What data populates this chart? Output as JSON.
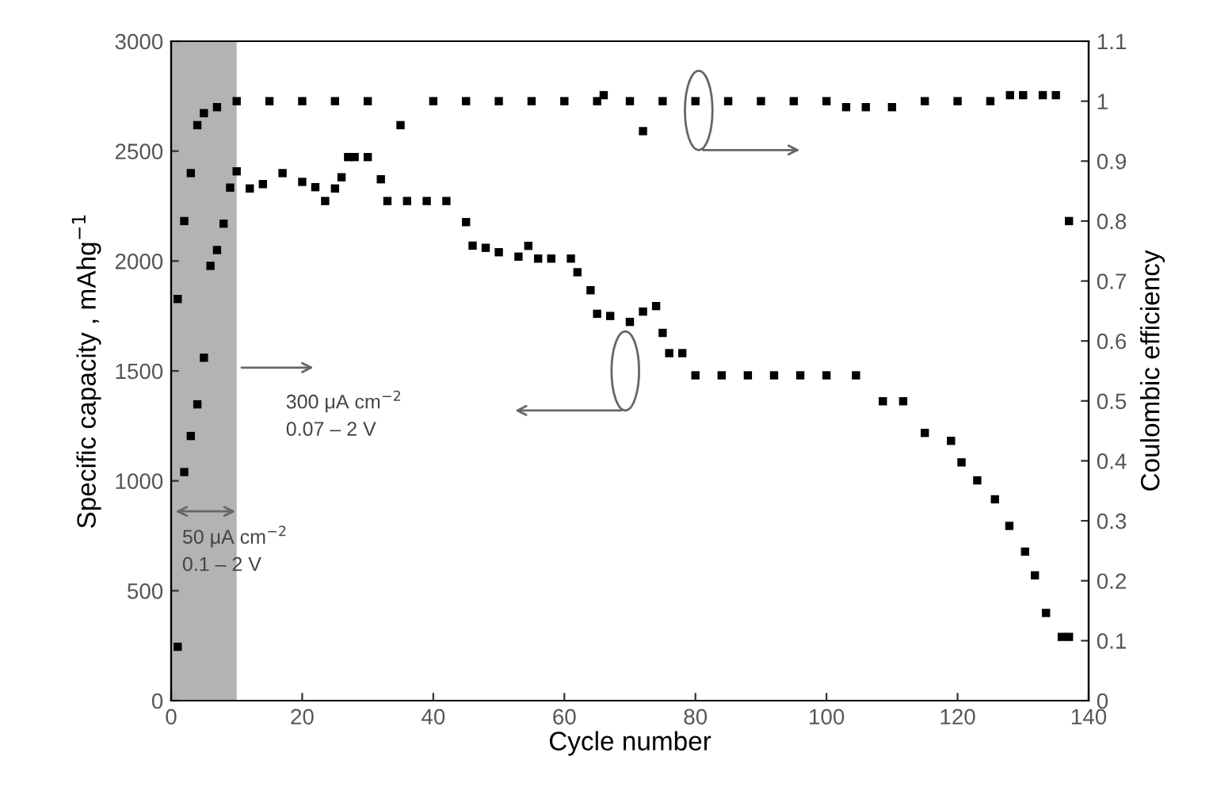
{
  "chart_data": {
    "type": "scatter",
    "xlabel": "Cycle number",
    "ylabel": "Specific capacity , mAhg$^{−1}$",
    "y2label": "Coulombic efficiency",
    "marker": "square",
    "grid": false,
    "legend": false,
    "xlim": [
      0,
      140
    ],
    "xticks": [
      0,
      20,
      40,
      60,
      80,
      100,
      120,
      140
    ],
    "ylim": [
      0,
      3000
    ],
    "yticks": [
      0,
      500,
      1000,
      1500,
      2000,
      2500,
      3000
    ],
    "y2lim": [
      0,
      1.1
    ],
    "y2ticks": [
      0,
      0.1,
      0.2,
      0.3,
      0.4,
      0.5,
      0.6,
      0.7,
      0.8,
      0.9,
      1,
      1.1
    ],
    "bands": [
      {
        "axis": "x",
        "from": 0,
        "to": 10,
        "color": "#b3b3b3"
      }
    ],
    "annotations": [
      "300 μA cm$^{−2}$\n0.07 – 2 V",
      "50 μA cm$^{−2}$\n0.1 – 2 V"
    ],
    "series": [
      {
        "color": "#000000",
        "axis": "y",
        "x": [
          1,
          2,
          3,
          4,
          5,
          6,
          7,
          8,
          9,
          10,
          12,
          14,
          17,
          20,
          22,
          23.5,
          25,
          26,
          27,
          28,
          30,
          32,
          33,
          36,
          39,
          42,
          45,
          46,
          48,
          50,
          53,
          54.5,
          56,
          58,
          61,
          62,
          64,
          65,
          67,
          70,
          72,
          74,
          75,
          76,
          78,
          80,
          84,
          88,
          92,
          96,
          100,
          104.5,
          108.6,
          111.7,
          115,
          119,
          120.6,
          123,
          125.7,
          127.9,
          130.3,
          131.8,
          133.5,
          135.9,
          137
        ],
        "values": [
          245,
          1040,
          1204,
          1348,
          1560,
          1978,
          2050,
          2170,
          2334,
          2408,
          2330,
          2350,
          2400,
          2360,
          2336,
          2273,
          2330,
          2381,
          2473,
          2473,
          2473,
          2372,
          2273,
          2273,
          2273,
          2273,
          2177,
          2070,
          2060,
          2040,
          2020,
          2069,
          2011,
          2011,
          2011,
          1949,
          1867,
          1760,
          1750,
          1723,
          1770,
          1795,
          1673,
          1581,
          1581,
          1480,
          1480,
          1480,
          1480,
          1480,
          1480,
          1480,
          1362,
          1362,
          1218,
          1182,
          1084,
          1002,
          916,
          795,
          678,
          570,
          399,
          290,
          290
        ]
      },
      {
        "color": "#000000",
        "axis": "y2",
        "x": [
          1,
          2,
          3,
          4,
          5,
          7,
          10,
          15,
          20,
          25,
          30,
          35,
          40,
          45,
          50,
          55,
          60,
          65,
          66,
          70,
          72,
          75,
          80,
          85,
          90,
          95,
          100,
          103,
          106,
          110,
          115,
          120,
          125,
          128,
          130,
          133,
          135,
          137
        ],
        "values": [
          0.67,
          0.8,
          0.88,
          0.96,
          0.98,
          0.99,
          1.0,
          1.0,
          1.0,
          1.0,
          1.0,
          0.96,
          1.0,
          1.0,
          1.0,
          1.0,
          1.0,
          1.0,
          1.01,
          1.0,
          0.95,
          1.0,
          1.0,
          1.0,
          1.0,
          1.0,
          1.0,
          0.99,
          0.99,
          0.99,
          1.0,
          1.0,
          1.0,
          1.01,
          1.01,
          1.01,
          1.01,
          0.8
        ]
      }
    ]
  }
}
